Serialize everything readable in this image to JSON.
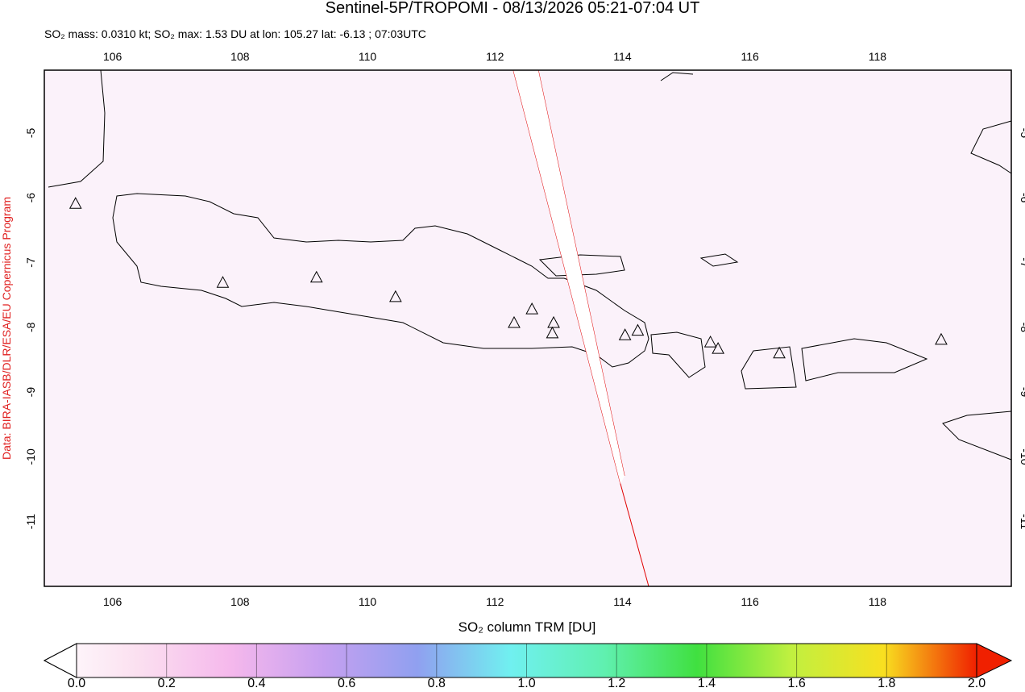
{
  "title": "Sentinel-5P/TROPOMI - 08/13/2026 05:21-07:04 UT",
  "subtitle": "SO₂ mass: 0.0310 kt; SO₂ max: 1.53 DU at lon: 105.27 lat: -6.13 ; 07:03UTC",
  "credit": "Data: BIRA-IASB/DLR/ESA/EU Copernicus Program",
  "map": {
    "lon_lim": [
      104.93,
      120.1
    ],
    "lat_lim": [
      -4.03,
      -12.0
    ],
    "lon_ticks": [
      106,
      108,
      110,
      112,
      114,
      116,
      118
    ],
    "lat_ticks": [
      -5,
      -6,
      -7,
      -8,
      -9,
      -10,
      -11
    ],
    "volcanoes": [
      [
        105.42,
        -6.1
      ],
      [
        107.73,
        -7.32
      ],
      [
        109.2,
        -7.24
      ],
      [
        110.44,
        -7.54
      ],
      [
        112.3,
        -7.94
      ],
      [
        112.58,
        -7.73
      ],
      [
        112.92,
        -7.94
      ],
      [
        112.9,
        -8.1
      ],
      [
        114.04,
        -8.13
      ],
      [
        114.24,
        -8.06
      ],
      [
        115.38,
        -8.24
      ],
      [
        115.5,
        -8.34
      ],
      [
        116.46,
        -8.41
      ],
      [
        119.0,
        -8.2
      ]
    ]
  },
  "colorbar": {
    "label": "SO₂ column TRM [DU]",
    "lim": [
      0,
      2
    ],
    "ticks": [
      {
        "value": 0,
        "label": "0.0"
      },
      {
        "value": 0.2,
        "label": "0.2"
      },
      {
        "value": 0.4,
        "label": "0.4"
      },
      {
        "value": 0.6,
        "label": "0.6"
      },
      {
        "value": 0.8,
        "label": "0.8"
      },
      {
        "value": 1,
        "label": "1.0"
      },
      {
        "value": 1.2,
        "label": "1.2"
      },
      {
        "value": 1.4,
        "label": "1.4"
      },
      {
        "value": 1.6,
        "label": "1.6"
      },
      {
        "value": 1.8,
        "label": "1.8"
      },
      {
        "value": 2,
        "label": "2.0"
      }
    ]
  }
}
